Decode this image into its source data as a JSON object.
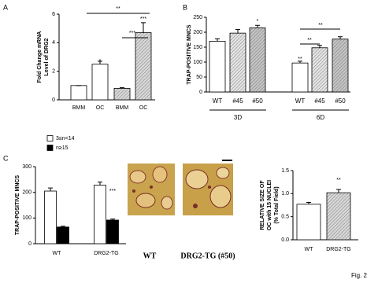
{
  "panels": [
    "A",
    "B",
    "C"
  ],
  "figure_label": "Fig. 2",
  "image_captions": [
    "WT",
    "DRG2-TG (#50)"
  ],
  "chart_data": [
    {
      "type": "bar",
      "ylabel": [
        "Fold Change mRNA",
        "Level of DRG2"
      ],
      "categories": [
        "BMM",
        "OC",
        "BMM",
        "OC"
      ],
      "values": [
        1.0,
        2.5,
        0.8,
        4.7
      ],
      "errors": [
        0,
        0.2,
        0.05,
        0.7
      ],
      "colors": [
        "#ffffff",
        "#ffffff",
        "#d8d8d8",
        "#d8d8d8"
      ],
      "hatched": [
        false,
        false,
        true,
        true
      ],
      "ylim": [
        0,
        6
      ],
      "yticks": [
        0,
        2,
        4,
        6
      ],
      "annotations": [
        "*",
        "***",
        "***",
        "**"
      ]
    },
    {
      "type": "bar",
      "ylabel": [
        "TRAP-POSITIVE MNCS"
      ],
      "categories": [
        "WT",
        "#45",
        "#50",
        "WT",
        "#45",
        "#50"
      ],
      "groups": [
        "3D",
        "6D"
      ],
      "values": [
        170,
        197,
        215,
        97,
        148,
        177
      ],
      "errors": [
        8,
        12,
        8,
        6,
        8,
        8
      ],
      "colors": [
        "#ffffff",
        "#e4e4e4",
        "#c4c4c4",
        "#ffffff",
        "#e4e4e4",
        "#c4c4c4"
      ],
      "hatched": [
        false,
        true,
        true,
        false,
        true,
        true
      ],
      "ylim": [
        0,
        250
      ],
      "yticks": [
        0,
        50,
        100,
        150,
        200,
        250
      ],
      "annotations": [
        "*",
        "**",
        "**",
        "**"
      ]
    },
    {
      "type": "grouped-bar",
      "ylabel": [
        "TRAP-POSITIVE MNCS"
      ],
      "categories": [
        "WT",
        "DRG2-TG"
      ],
      "series": [
        {
          "name": "3≤n<14",
          "color": "#ffffff",
          "values": [
            205,
            228
          ],
          "errors": [
            12,
            12
          ]
        },
        {
          "name": "n≥15",
          "color": "#000000",
          "values": [
            65,
            92
          ],
          "errors": [
            3,
            4
          ]
        }
      ],
      "ylim": [
        0,
        300
      ],
      "yticks": [
        0,
        100,
        200,
        300
      ],
      "annotations": [
        "***"
      ]
    },
    {
      "type": "bar",
      "ylabel": [
        "RELATIVE SIZE OF",
        "OC with 15 NUCLEI",
        "(% Total Field)"
      ],
      "categories": [
        "WT",
        "DRG2-TG"
      ],
      "values": [
        0.77,
        1.02
      ],
      "errors": [
        0.04,
        0.07
      ],
      "colors": [
        "#ffffff",
        "#d8d8d8"
      ],
      "hatched": [
        false,
        true
      ],
      "ylim": [
        0,
        1.5
      ],
      "yticks": [
        {
          "value": 0,
          "label": "0.0"
        },
        0.5,
        {
          "value": 1,
          "label": "1.0"
        },
        1.5
      ],
      "annotations": [
        "**"
      ]
    }
  ]
}
